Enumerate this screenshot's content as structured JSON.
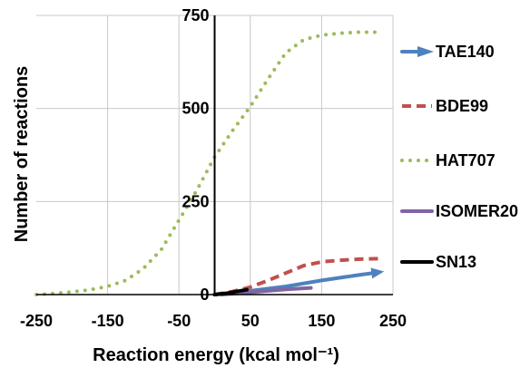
{
  "chart_data": {
    "type": "line",
    "title": "",
    "xlabel": "Reaction energy (kcal mol⁻¹)",
    "ylabel": "Number of reactions",
    "xlim": [
      -250,
      250
    ],
    "ylim": [
      0,
      750
    ],
    "xticks": [
      -250,
      -150,
      -50,
      50,
      150,
      250
    ],
    "yticks": [
      0,
      250,
      500,
      750
    ],
    "grid": "vertical",
    "legend_position": "right",
    "series": [
      {
        "name": "TAE140",
        "color": "#4f81bd",
        "style": "solid-arrow",
        "x": [
          0,
          50,
          100,
          150,
          200,
          230
        ],
        "y": [
          0,
          10,
          22,
          38,
          52,
          60
        ]
      },
      {
        "name": "BDE99",
        "color": "#c0504d",
        "style": "dashed",
        "x": [
          0,
          25,
          50,
          75,
          100,
          125,
          150,
          175,
          200,
          235
        ],
        "y": [
          0,
          8,
          20,
          38,
          58,
          78,
          88,
          92,
          95,
          97
        ]
      },
      {
        "name": "HAT707",
        "color": "#9bbb59",
        "style": "dotted",
        "x": [
          -250,
          -225,
          -200,
          -175,
          -150,
          -125,
          -100,
          -75,
          -50,
          -25,
          0,
          25,
          50,
          75,
          100,
          125,
          150,
          175,
          200,
          235
        ],
        "y": [
          0,
          3,
          7,
          13,
          22,
          38,
          70,
          120,
          200,
          280,
          370,
          440,
          505,
          580,
          650,
          685,
          697,
          702,
          705,
          705
        ]
      },
      {
        "name": "ISOMER20",
        "color": "#8064a2",
        "style": "solid",
        "x": [
          10,
          50,
          100,
          135
        ],
        "y": [
          0,
          6,
          14,
          18
        ]
      },
      {
        "name": "SN13",
        "color": "#000000",
        "style": "solid",
        "x": [
          0,
          15,
          30,
          45
        ],
        "y": [
          0,
          3,
          8,
          13
        ]
      }
    ]
  }
}
